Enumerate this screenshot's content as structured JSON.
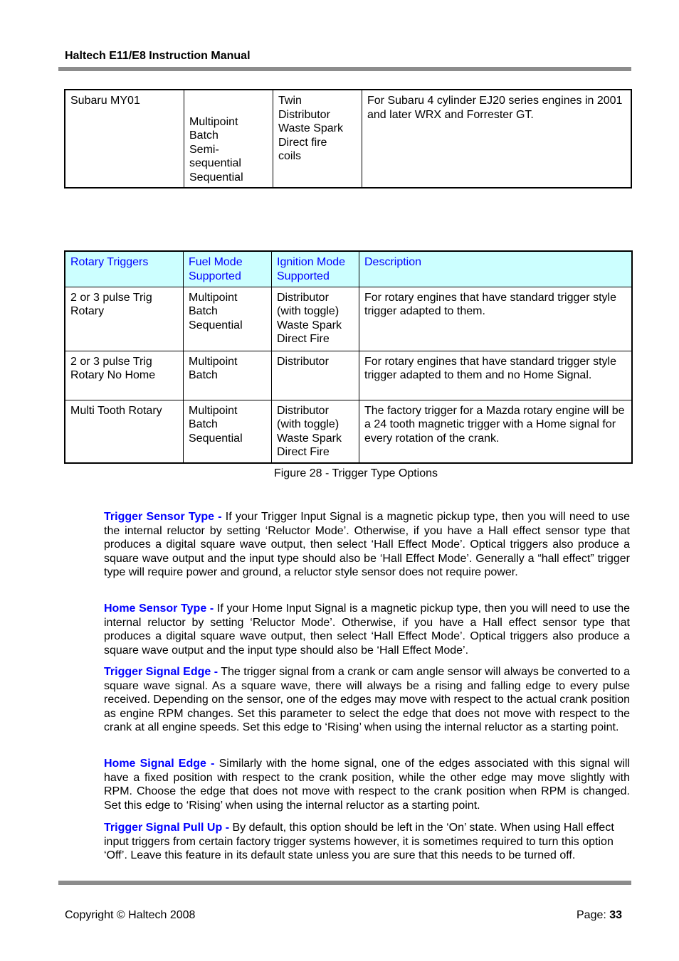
{
  "header": {
    "title": "Haltech E11/E8 Instruction Manual"
  },
  "table1": {
    "rows": [
      [
        "Subaru MY01",
        "Multipoint\nBatch\nSemi-\nsequential\nSequential",
        "Twin\nDistributor\nWaste Spark\nDirect fire\ncoils",
        "For Subaru 4 cylinder EJ20 series engines in 2001 and later WRX and Forrester GT."
      ]
    ]
  },
  "table2": {
    "headers": [
      "Rotary Triggers",
      "Fuel Mode Supported",
      "Ignition Mode Supported",
      "Description"
    ],
    "rows": [
      [
        "2 or 3 pulse Trig Rotary",
        "Multipoint\nBatch\nSequential",
        "Distributor\n(with toggle)\nWaste Spark\nDirect Fire",
        "For rotary engines that have standard trigger style trigger adapted to them."
      ],
      [
        "2 or 3 pulse Trig Rotary No Home",
        "Multipoint\nBatch",
        "Distributor",
        "For rotary engines that have standard trigger style trigger adapted to them and no Home Signal."
      ],
      [
        "Multi Tooth Rotary",
        "Multipoint\nBatch\nSequential",
        "Distributor\n(with toggle)\nWaste Spark\nDirect Fire",
        "The factory trigger for a Mazda rotary engine will be a 24 tooth magnetic trigger with a Home signal for every rotation of the crank."
      ]
    ]
  },
  "caption": "Figure 28 - Trigger Type Options",
  "paragraphs": [
    {
      "term": "Trigger Sensor Type -",
      "text": " If your Trigger Input Signal is a magnetic pickup type, then you will need to use the internal reluctor by setting ‘Reluctor Mode’. Otherwise, if you have a Hall effect sensor type that produces a digital square wave output, then select ‘Hall Effect Mode’. Optical triggers also produce a square wave output and the input type should also be ‘Hall Effect Mode’. Generally a “hall effect” trigger type will require power and ground, a reluctor style sensor does not require power."
    },
    {
      "term": "Home Sensor Type -",
      "text": " If your Home Input Signal is a magnetic pickup type, then you will need to use the internal reluctor by setting ‘Reluctor Mode’. Otherwise, if you have a Hall effect sensor type that produces a digital square wave output, then select ‘Hall Effect Mode’. Optical triggers also produce a square wave output and the input type should also be ‘Hall Effect Mode’."
    },
    {
      "term": "Trigger Signal Edge -",
      "text": " The trigger signal from a crank or cam angle sensor will always be converted to a square wave signal. As a square wave, there will always be a rising and falling edge to every pulse received. Depending on the sensor, one of the edges may move with respect to the actual crank position as engine RPM changes. Set this parameter to select the edge that does not move with respect to the crank at all engine speeds. Set this edge to ‘Rising’ when using the internal reluctor as a starting point."
    },
    {
      "term": "Home Signal Edge -",
      "text": " Similarly with the home signal, one of the edges associated with this signal will have a fixed position with respect to the crank position, while the other edge may move slightly with RPM. Choose the edge that does not move with respect to the crank position when RPM is changed. Set this edge to ‘Rising’ when using the internal reluctor as a starting point."
    },
    {
      "term": "Trigger Signal Pull Up -",
      "text": " By default, this option should be left in the ‘On’ state. When using Hall effect input triggers from certain factory trigger systems however, it is sometimes required to turn this option ‘Off’. Leave this feature in its default state unless you are sure that this needs to be turned off."
    }
  ],
  "footer": {
    "copyright": "Copyright © Haltech 2008",
    "page_label": "Page: ",
    "page_number": "33"
  }
}
